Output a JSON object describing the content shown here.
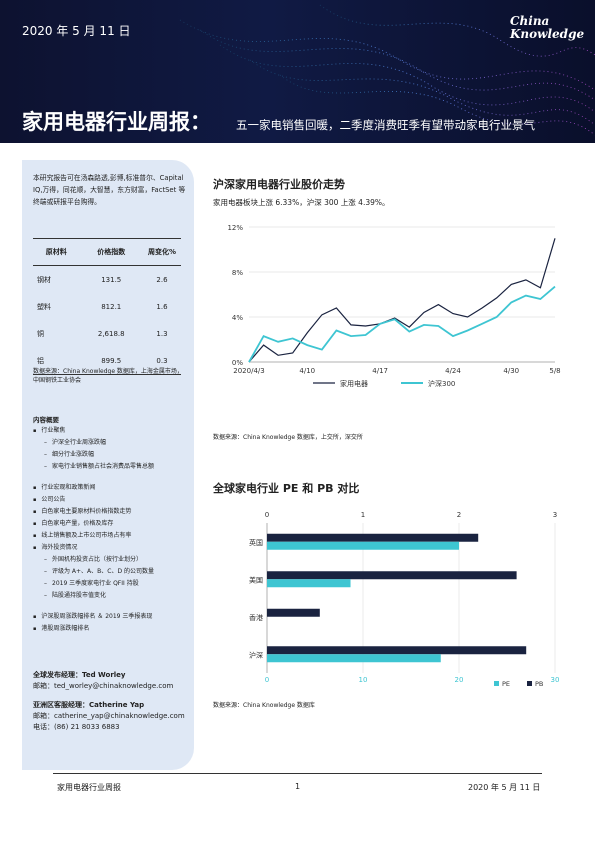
{
  "header": {
    "date": "2020 年 5 月 11 日",
    "logo_line1": "China",
    "logo_line2": "Knowledge",
    "title": "家用电器行业周报：",
    "subtitle": "五一家电销售回暖，二季度消费旺季有望带动家电行业景气"
  },
  "sidebar": {
    "intro": "本研究报告可在汤森路透,彭博,标准普尔、Capital IQ,万得，同花顺，大智慧，东方财富，FactSet 等终端或研报平台购得。",
    "table": {
      "headers": [
        "原材料",
        "价格指数",
        "周变化%"
      ],
      "rows": [
        [
          "钢材",
          "131.5",
          "2.6"
        ],
        [
          "塑料",
          "812.1",
          "1.6"
        ],
        [
          "铜",
          "2,618.8",
          "1.3"
        ],
        [
          "铝",
          "899.5",
          "0.3"
        ]
      ],
      "source": "数据来源：China Knowledge 数据库，上海金属市场，中国钢铁工业协会"
    },
    "toc_title": "内容概要",
    "toc": [
      {
        "level": 1,
        "text": "行业聚焦"
      },
      {
        "level": 2,
        "text": "沪深全行业周涨跌幅"
      },
      {
        "level": 2,
        "text": "细分行业涨跌幅"
      },
      {
        "level": 2,
        "text": "家电行业销售额占社会消费品零售总额"
      },
      {
        "level": 0,
        "text": ""
      },
      {
        "level": 1,
        "text": "行业宏观和政策新闻"
      },
      {
        "level": 1,
        "text": "公司公告"
      },
      {
        "level": 1,
        "text": "白色家电主要原材料价格指数走势"
      },
      {
        "level": 1,
        "text": "白色家电产量，价格及库存"
      },
      {
        "level": 1,
        "text": "线上销售额及上市公司市场占有率"
      },
      {
        "level": 1,
        "text": "海外投资情况"
      },
      {
        "level": 2,
        "text": "外国机构投资占比（按行业划分）"
      },
      {
        "level": 2,
        "text": "评级为 A+、A、B、C、D 的公司数量"
      },
      {
        "level": 2,
        "text": "2019 三季度家电行业 QFII 持股"
      },
      {
        "level": 2,
        "text": "陆股通持股市值变化"
      },
      {
        "level": 0,
        "text": ""
      },
      {
        "level": 1,
        "text": "沪深股周涨跌幅排名 ＆ 2019 三季报表现"
      },
      {
        "level": 1,
        "text": "港股周涨跌幅排名"
      }
    ],
    "contacts": [
      {
        "role": "全球发布经理：Ted Worley",
        "email": "邮箱：ted_worley@chinaknowledge.com"
      },
      {
        "role": "亚洲区客服经理：Catherine Yap",
        "email": "邮箱：catherine_yap@chinaknowledge.com",
        "phone": "电话：(86) 21 8033 6883"
      }
    ]
  },
  "section1": {
    "title": "沪深家用电器行业股价走势",
    "subtitle": "家用电器板块上涨 6.33%，沪深 300 上涨 4.39%。",
    "source": "数据来源：China Knowledge 数据库，上交所，深交所"
  },
  "section2": {
    "title": "全球家电行业 PE 和 PB 对比",
    "source": "数据来源：China Knowledge 数据库"
  },
  "footer": {
    "left": "家用电器行业周报",
    "page": "1",
    "right": "2020 年 5 月 11 日"
  },
  "colors": {
    "appliance": "#1a2340",
    "csi300": "#3ec5d2",
    "pb": "#1a2340",
    "pe": "#3ec5d2"
  },
  "chart_data": [
    {
      "type": "line",
      "x_ticks": [
        "2020/4/3",
        "4/10",
        "4/17",
        "4/24",
        "4/30",
        "5/8"
      ],
      "y_ticks": [
        "0%",
        "4%",
        "8%",
        "12%"
      ],
      "ylim": [
        0,
        12
      ],
      "series": [
        {
          "name": "家用电器",
          "values": [
            0.0,
            1.5,
            0.6,
            0.8,
            2.6,
            4.2,
            4.8,
            3.3,
            3.2,
            3.4,
            3.9,
            3.1,
            4.4,
            5.1,
            4.3,
            4.0,
            4.8,
            5.7,
            6.9,
            7.3,
            6.6,
            11.0
          ]
        },
        {
          "name": "沪深300",
          "values": [
            0.0,
            2.3,
            1.8,
            2.1,
            1.5,
            1.1,
            2.8,
            2.3,
            2.4,
            3.4,
            3.8,
            2.7,
            3.3,
            3.2,
            2.3,
            2.8,
            3.4,
            4.0,
            5.3,
            5.9,
            5.6,
            6.7
          ]
        }
      ]
    },
    {
      "type": "bar",
      "orientation": "horizontal",
      "categories": [
        "英国",
        "美国",
        "香港",
        "沪深"
      ],
      "top_axis_ticks": [
        "0",
        "1",
        "2",
        "3"
      ],
      "bottom_axis_ticks": [
        "0",
        "10",
        "20",
        "30"
      ],
      "series": [
        {
          "name": "PB",
          "axis": "top",
          "values": [
            2.2,
            2.6,
            0.55,
            2.7
          ]
        },
        {
          "name": "PE",
          "axis": "bottom",
          "values": [
            20.0,
            8.7,
            null,
            18.1
          ]
        }
      ]
    }
  ]
}
